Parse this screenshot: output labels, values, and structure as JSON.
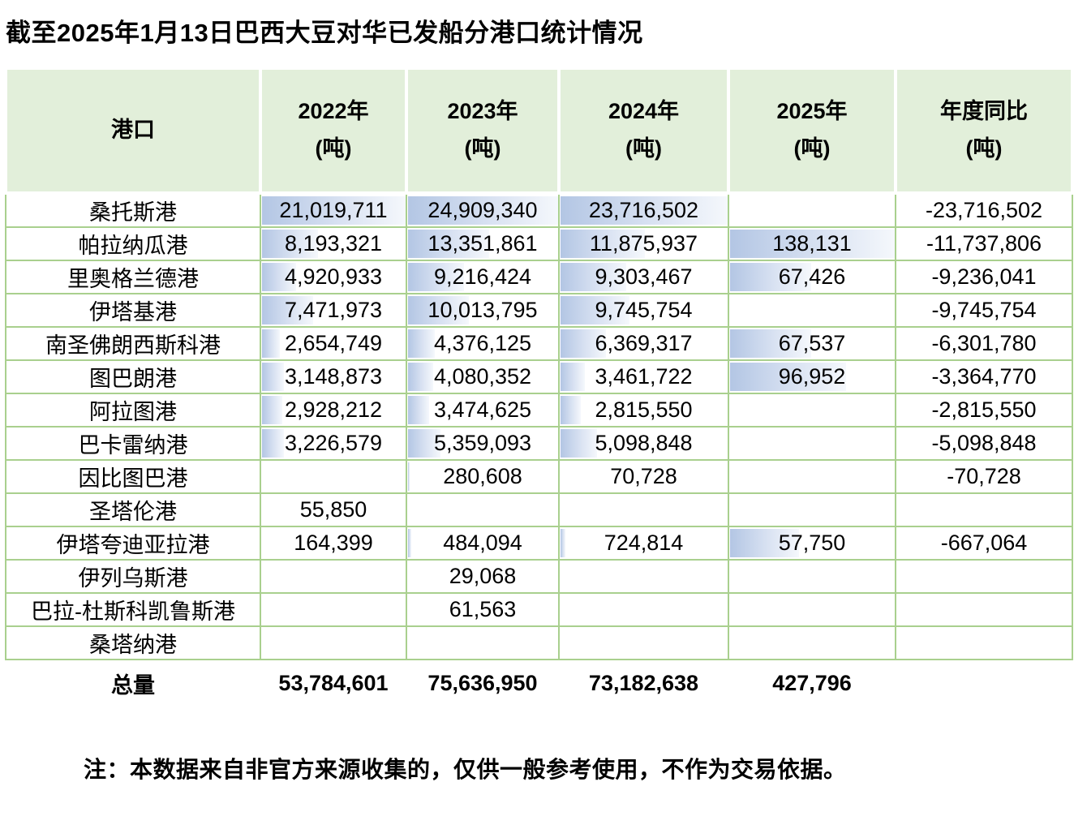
{
  "note": "注：本数据来自非官方来源收集的，仅供一般参考使用，不作为交易依据。",
  "colors": {
    "header_bg": "#e2efda",
    "grid_border": "#a9d08e",
    "bar_gradient_start": "#b3c6e4",
    "bar_gradient_end": "#f5f8fc"
  },
  "chart_data": {
    "type": "table",
    "title": "截至2025年1月13日巴西大豆对华已发船分港口统计情况",
    "columns": [
      {
        "label": "港口",
        "unit": ""
      },
      {
        "label": "2022年",
        "unit": "(吨)"
      },
      {
        "label": "2023年",
        "unit": "(吨)"
      },
      {
        "label": "2024年",
        "unit": "(吨)"
      },
      {
        "label": "2025年",
        "unit": "(吨)"
      },
      {
        "label": "年度同比",
        "unit": "(吨)"
      }
    ],
    "rows": [
      {
        "port": "桑托斯港",
        "values": [
          "21,019,711",
          "24,909,340",
          "23,716,502",
          "",
          "-23,716,502"
        ]
      },
      {
        "port": "帕拉纳瓜港",
        "values": [
          "8,193,321",
          "13,351,861",
          "11,875,937",
          "138,131",
          "-11,737,806"
        ]
      },
      {
        "port": "里奥格兰德港",
        "values": [
          "4,920,933",
          "9,216,424",
          "9,303,467",
          "67,426",
          "-9,236,041"
        ]
      },
      {
        "port": "伊塔基港",
        "values": [
          "7,471,973",
          "10,013,795",
          "9,745,754",
          "",
          "-9,745,754"
        ]
      },
      {
        "port": "南圣佛朗西斯科港",
        "values": [
          "2,654,749",
          "4,376,125",
          "6,369,317",
          "67,537",
          "-6,301,780"
        ]
      },
      {
        "port": "图巴朗港",
        "values": [
          "3,148,873",
          "4,080,352",
          "3,461,722",
          "96,952",
          "-3,364,770"
        ]
      },
      {
        "port": "阿拉图港",
        "values": [
          "2,928,212",
          "3,474,625",
          "2,815,550",
          "",
          "-2,815,550"
        ]
      },
      {
        "port": "巴卡雷纳港",
        "values": [
          "3,226,579",
          "5,359,093",
          "5,098,848",
          "",
          "-5,098,848"
        ]
      },
      {
        "port": "因比图巴港",
        "values": [
          "",
          "280,608",
          "70,728",
          "",
          "-70,728"
        ]
      },
      {
        "port": "圣塔伦港",
        "values": [
          "55,850",
          "",
          "",
          "",
          ""
        ]
      },
      {
        "port": "伊塔夸迪亚拉港",
        "values": [
          "164,399",
          "484,094",
          "724,814",
          "57,750",
          "-667,064"
        ]
      },
      {
        "port": "伊列乌斯港",
        "values": [
          "",
          "29,068",
          "",
          "",
          ""
        ]
      },
      {
        "port": "巴拉-杜斯科凯鲁斯港",
        "values": [
          "",
          "61,563",
          "",
          "",
          ""
        ]
      },
      {
        "port": "桑塔纳港",
        "values": [
          "",
          "",
          "",
          "",
          ""
        ]
      }
    ],
    "total": {
      "label": "总量",
      "values": [
        "53,784,601",
        "75,636,950",
        "73,182,638",
        "427,796",
        ""
      ]
    }
  }
}
